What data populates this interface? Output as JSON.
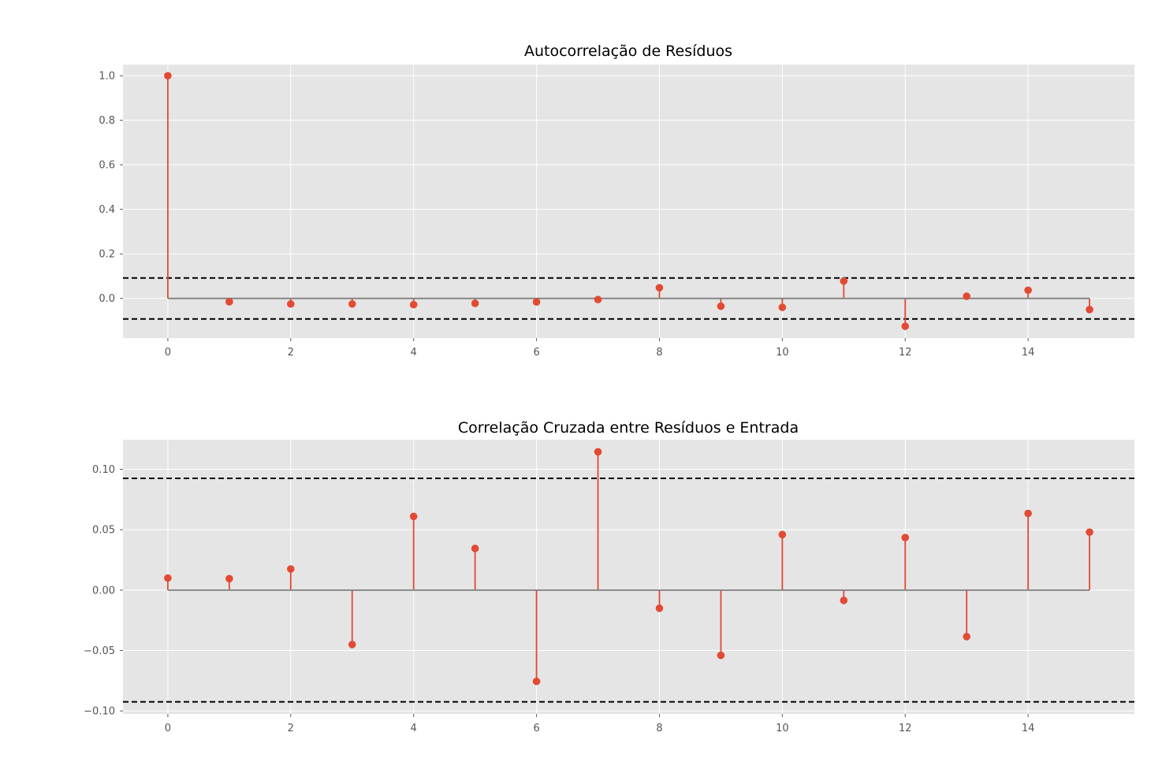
{
  "colors": {
    "background": "#ffffff",
    "axes_face": "#e5e5e5",
    "grid": "#ffffff",
    "stem": "#e24a33",
    "baseline": "#808080",
    "conf_lines": "#000000",
    "tick_text": "#555555"
  },
  "chart_data": [
    {
      "type": "stem",
      "title": "Autocorrelação de Resíduos",
      "xlabel": "",
      "ylabel": "",
      "x": [
        0,
        1,
        2,
        3,
        4,
        5,
        6,
        7,
        8,
        9,
        10,
        11,
        12,
        13,
        14,
        15
      ],
      "values": [
        1.0,
        -0.015,
        -0.025,
        -0.025,
        -0.028,
        -0.022,
        -0.016,
        -0.005,
        0.048,
        -0.035,
        -0.04,
        0.078,
        -0.125,
        0.01,
        0.037,
        -0.05
      ],
      "confidence_bounds": [
        0.092,
        -0.092
      ],
      "xlim": [
        -0.73,
        15.73
      ],
      "ylim": [
        -0.178,
        1.05
      ],
      "xticks": [
        0,
        2,
        4,
        6,
        8,
        10,
        12,
        14
      ],
      "xtick_labels": [
        "0",
        "2",
        "4",
        "6",
        "8",
        "10",
        "12",
        "14"
      ],
      "yticks": [
        1.0,
        0.8,
        0.6,
        0.4,
        0.2,
        0.0
      ],
      "ytick_labels": [
        "1.0",
        "0.8",
        "0.6",
        "0.4",
        "0.2",
        "0.0"
      ],
      "grid": true
    },
    {
      "type": "stem",
      "title": "Correlação Cruzada entre Resíduos e Entrada",
      "xlabel": "",
      "ylabel": "",
      "x": [
        0,
        1,
        2,
        3,
        4,
        5,
        6,
        7,
        8,
        9,
        10,
        11,
        12,
        13,
        14,
        15
      ],
      "values": [
        0.01,
        0.0095,
        0.0175,
        -0.045,
        0.061,
        0.0345,
        -0.0755,
        0.1145,
        -0.015,
        -0.054,
        0.046,
        -0.0085,
        0.0435,
        -0.0385,
        0.0635,
        0.048
      ],
      "confidence_bounds": [
        0.0925,
        -0.0925
      ],
      "xlim": [
        -0.73,
        15.73
      ],
      "ylim": [
        -0.1025,
        0.1245
      ],
      "xticks": [
        0,
        2,
        4,
        6,
        8,
        10,
        12,
        14
      ],
      "xtick_labels": [
        "0",
        "2",
        "4",
        "6",
        "8",
        "10",
        "12",
        "14"
      ],
      "yticks": [
        0.1,
        0.05,
        0.0,
        -0.05,
        -0.1
      ],
      "ytick_labels": [
        "0.10",
        "0.05",
        "0.00",
        "−0.05",
        "−0.10"
      ],
      "grid": true
    }
  ]
}
